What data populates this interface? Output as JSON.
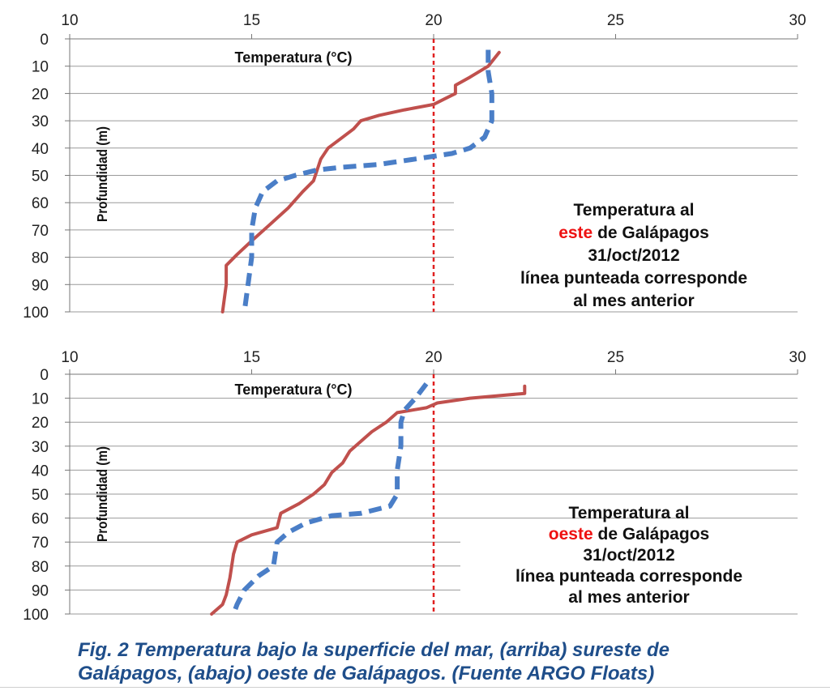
{
  "chart_data": [
    {
      "type": "line",
      "title": "Temperatura (°C)",
      "xlabel": "Temperatura (°C)",
      "ylabel": "Profundidad (m)",
      "xlim": [
        10,
        30
      ],
      "ylim": [
        0,
        100
      ],
      "y_inverted": true,
      "x_axis_position": "top",
      "x_ticks": [
        "10",
        "15",
        "20",
        "25",
        "30"
      ],
      "y_ticks": [
        "0",
        "10",
        "20",
        "30",
        "40",
        "50",
        "60",
        "70",
        "80",
        "90",
        "100"
      ],
      "grid": "horizontal",
      "reference_line": {
        "x": 20,
        "color": "#e02020",
        "style": "dotted"
      },
      "annotation": {
        "line1": "Temperatura al",
        "line2_red": "este",
        "line2_rest": " de Galápagos",
        "line3": "31/oct/2012",
        "line4": "línea punteada corresponde",
        "line5": "al mes anterior"
      },
      "series": [
        {
          "style": "solid",
          "color": "#c0504d",
          "points": [
            [
              21.8,
              5
            ],
            [
              21.5,
              10
            ],
            [
              21.0,
              14
            ],
            [
              20.6,
              17
            ],
            [
              20.6,
              20
            ],
            [
              20.3,
              22
            ],
            [
              20.0,
              24
            ],
            [
              19.2,
              26
            ],
            [
              18.5,
              28
            ],
            [
              18.0,
              30
            ],
            [
              17.8,
              33
            ],
            [
              17.5,
              36
            ],
            [
              17.1,
              40
            ],
            [
              16.9,
              44
            ],
            [
              16.8,
              48
            ],
            [
              16.7,
              52
            ],
            [
              16.4,
              56
            ],
            [
              16.0,
              62
            ],
            [
              15.5,
              68
            ],
            [
              15.0,
              74
            ],
            [
              14.6,
              79
            ],
            [
              14.3,
              83
            ],
            [
              14.3,
              90
            ],
            [
              14.2,
              100
            ]
          ]
        },
        {
          "style": "dashed",
          "color": "#4a7ec7",
          "points": [
            [
              21.5,
              4
            ],
            [
              21.5,
              12
            ],
            [
              21.6,
              20
            ],
            [
              21.6,
              30
            ],
            [
              21.4,
              36
            ],
            [
              21.0,
              40
            ],
            [
              20.5,
              42
            ],
            [
              19.5,
              44
            ],
            [
              18.5,
              46
            ],
            [
              17.5,
              47
            ],
            [
              16.8,
              48
            ],
            [
              16.2,
              50
            ],
            [
              15.7,
              52
            ],
            [
              15.3,
              56
            ],
            [
              15.1,
              62
            ],
            [
              15.0,
              70
            ],
            [
              15.0,
              80
            ],
            [
              14.9,
              90
            ],
            [
              14.8,
              100
            ]
          ]
        }
      ]
    },
    {
      "type": "line",
      "title": "Temperatura (°C)",
      "xlabel": "Temperatura (°C)",
      "ylabel": "Profundidad (m)",
      "xlim": [
        10,
        30
      ],
      "ylim": [
        0,
        100
      ],
      "y_inverted": true,
      "x_axis_position": "top",
      "x_ticks": [
        "10",
        "15",
        "20",
        "25",
        "30"
      ],
      "y_ticks": [
        "0",
        "10",
        "20",
        "30",
        "40",
        "50",
        "60",
        "70",
        "80",
        "90",
        "100"
      ],
      "grid": "horizontal",
      "reference_line": {
        "x": 20,
        "color": "#e02020",
        "style": "dotted"
      },
      "annotation": {
        "line1": "Temperatura al",
        "line2_red": "oeste",
        "line2_rest": " de Galápagos",
        "line3": "31/oct/2012",
        "line4": "línea punteada corresponde",
        "line5": "al mes anterior"
      },
      "series": [
        {
          "style": "solid",
          "color": "#c0504d",
          "points": [
            [
              22.5,
              5
            ],
            [
              22.5,
              8
            ],
            [
              21.0,
              10
            ],
            [
              20.1,
              12
            ],
            [
              19.8,
              14
            ],
            [
              19.0,
              16
            ],
            [
              18.7,
              20
            ],
            [
              18.3,
              24
            ],
            [
              18.0,
              28
            ],
            [
              17.7,
              32
            ],
            [
              17.5,
              37
            ],
            [
              17.2,
              41
            ],
            [
              17.0,
              46
            ],
            [
              16.7,
              50
            ],
            [
              16.3,
              54
            ],
            [
              15.8,
              58
            ],
            [
              15.7,
              64
            ],
            [
              15.0,
              67
            ],
            [
              14.6,
              70
            ],
            [
              14.5,
              75
            ],
            [
              14.4,
              85
            ],
            [
              14.3,
              92
            ],
            [
              14.2,
              96
            ],
            [
              13.9,
              100
            ]
          ]
        },
        {
          "style": "dashed",
          "color": "#4a7ec7",
          "points": [
            [
              19.8,
              4
            ],
            [
              19.5,
              10
            ],
            [
              19.2,
              15
            ],
            [
              19.1,
              20
            ],
            [
              19.1,
              30
            ],
            [
              19.0,
              40
            ],
            [
              19.0,
              50
            ],
            [
              18.8,
              55
            ],
            [
              18.0,
              58
            ],
            [
              17.2,
              59
            ],
            [
              16.5,
              62
            ],
            [
              16.0,
              66
            ],
            [
              15.7,
              70
            ],
            [
              15.6,
              80
            ],
            [
              15.2,
              84
            ],
            [
              14.8,
              90
            ],
            [
              14.6,
              96
            ],
            [
              14.5,
              100
            ]
          ]
        }
      ]
    }
  ],
  "caption": {
    "line1": "Fig. 2 Temperatura bajo la superficie del mar, (arriba) sureste de",
    "line2": "Galápagos, (abajo) oeste de Galápagos. (Fuente ARGO Floats)"
  }
}
